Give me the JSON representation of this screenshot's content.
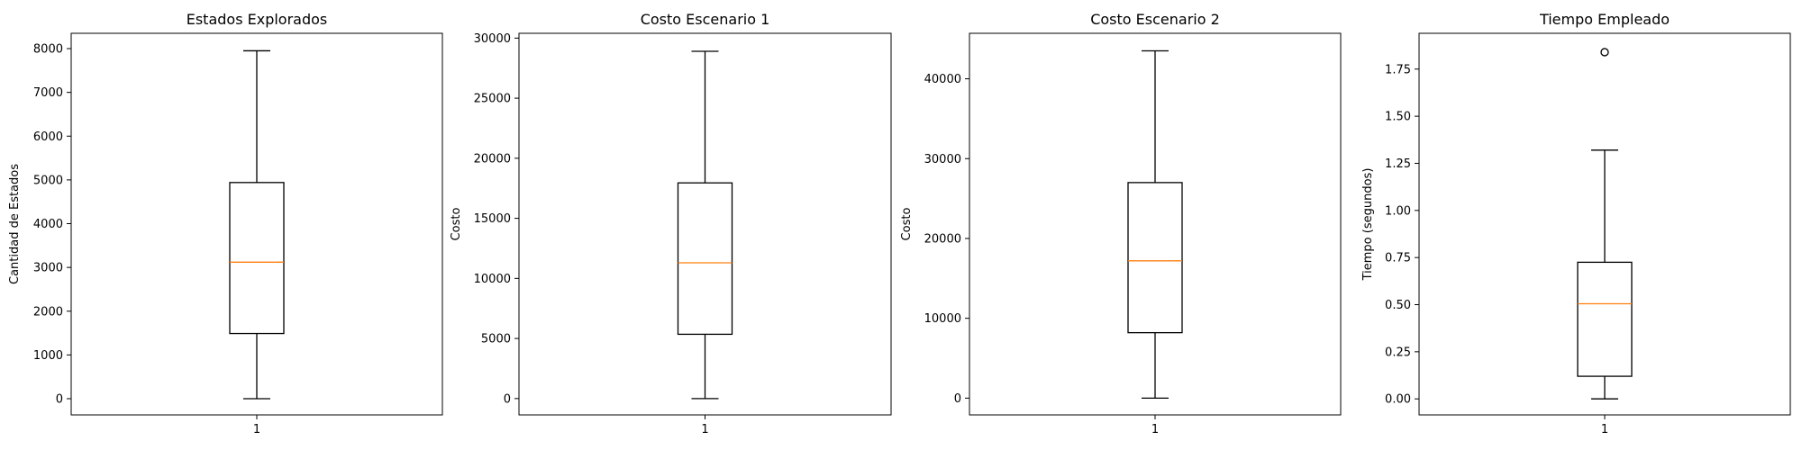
{
  "chart_data": [
    {
      "type": "box",
      "title": "Estados Explorados",
      "xlabel": "",
      "ylabel": "Cantidad de Estados",
      "categories": [
        "1"
      ],
      "ylim": [
        -370,
        8350
      ],
      "yticks": [
        0,
        1000,
        2000,
        3000,
        4000,
        5000,
        6000,
        7000,
        8000
      ],
      "ytick_labels": [
        "0",
        "1000",
        "2000",
        "3000",
        "4000",
        "5000",
        "6000",
        "7000",
        "8000"
      ],
      "boxes": [
        {
          "whisker_low": 0,
          "q1": 1490,
          "median": 3120,
          "q3": 4940,
          "whisker_high": 7950,
          "outliers": []
        }
      ]
    },
    {
      "type": "box",
      "title": "Costo Escenario 1",
      "xlabel": "",
      "ylabel": "Costo",
      "categories": [
        "1"
      ],
      "ylim": [
        -1360,
        30400
      ],
      "yticks": [
        0,
        5000,
        10000,
        15000,
        20000,
        25000,
        30000
      ],
      "ytick_labels": [
        "0",
        "5000",
        "10000",
        "15000",
        "20000",
        "25000",
        "30000"
      ],
      "boxes": [
        {
          "whisker_low": 0,
          "q1": 5350,
          "median": 11300,
          "q3": 17950,
          "whisker_high": 28900,
          "outliers": []
        }
      ]
    },
    {
      "type": "box",
      "title": "Costo Escenario 2",
      "xlabel": "",
      "ylabel": "Costo",
      "categories": [
        "1"
      ],
      "ylim": [
        -2100,
        45700
      ],
      "yticks": [
        0,
        10000,
        20000,
        30000,
        40000
      ],
      "ytick_labels": [
        "0",
        "10000",
        "20000",
        "30000",
        "40000"
      ],
      "boxes": [
        {
          "whisker_low": 0,
          "q1": 8200,
          "median": 17200,
          "q3": 27000,
          "whisker_high": 43500,
          "outliers": []
        }
      ]
    },
    {
      "type": "box",
      "title": "Tiempo Empleado",
      "xlabel": "",
      "ylabel": "Tiempo (segundos)",
      "categories": [
        "1"
      ],
      "ylim": [
        -0.085,
        1.94
      ],
      "yticks": [
        0,
        0.25,
        0.5,
        0.75,
        1.0,
        1.25,
        1.5,
        1.75
      ],
      "ytick_labels": [
        "0.00",
        "0.25",
        "0.50",
        "0.75",
        "1.00",
        "1.25",
        "1.50",
        "1.75"
      ],
      "boxes": [
        {
          "whisker_low": 0,
          "q1": 0.12,
          "median": 0.505,
          "q3": 0.725,
          "whisker_high": 1.32,
          "outliers": [
            1.84
          ]
        }
      ]
    }
  ],
  "colors": {
    "box_edge": "#000000",
    "median_line": "#ff7f0e",
    "frame": "#000000",
    "background": "#ffffff"
  }
}
